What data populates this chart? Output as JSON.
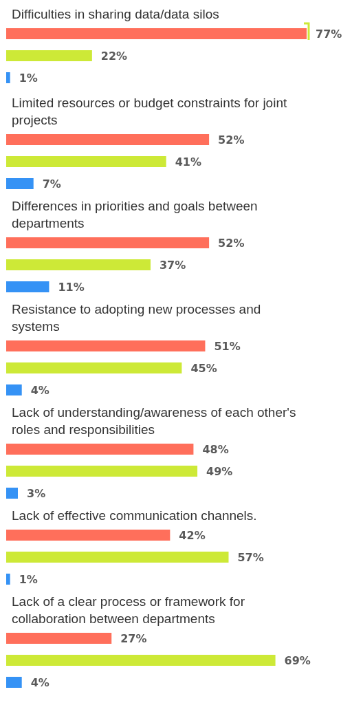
{
  "chart_data": {
    "type": "bar",
    "orientation": "horizontal",
    "categories": [
      "Difficulties in sharing data/data silos",
      "Limited resources or budget constraints for joint projects",
      "Differences in priorities and goals between departments",
      "Resistance to adopting new processes and systems",
      "Lack of understanding/awareness of each other's roles and responsibilities",
      "Lack of effective communication channels.",
      "Lack of a clear process or framework for collaboration between departments"
    ],
    "series": [
      {
        "color": "#ff6f5b",
        "values": [
          77,
          52,
          52,
          51,
          48,
          42,
          27
        ],
        "value_labels": [
          "77%",
          "52%",
          "52%",
          "51%",
          "48%",
          "42%",
          "27%"
        ]
      },
      {
        "color": "#cde937",
        "values": [
          22,
          41,
          37,
          45,
          49,
          57,
          69
        ],
        "value_labels": [
          "22%",
          "41%",
          "37%",
          "45%",
          "49%",
          "57%",
          "69%"
        ]
      },
      {
        "color": "#3592f5",
        "values": [
          1,
          7,
          11,
          4,
          3,
          1,
          4
        ],
        "value_labels": [
          "1%",
          "7%",
          "11%",
          "4%",
          "3%",
          "1%",
          "4%"
        ]
      }
    ],
    "legend": false,
    "grid": false
  }
}
